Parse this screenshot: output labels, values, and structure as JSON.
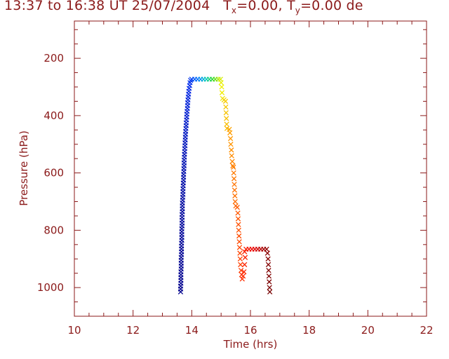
{
  "chart_data": {
    "type": "scatter",
    "title_parts": {
      "time_range": "13:37 to 16:38 UT 25/07/2004",
      "tx_label": "T",
      "tx_sub": "x",
      "tx_value": "=0.00, ",
      "ty_label": "T",
      "ty_sub": "y",
      "ty_value": "=0.00 de"
    },
    "xlabel": "Time  (hrs)",
    "ylabel": "Pressure  (hPa)",
    "xlim": [
      10,
      22
    ],
    "ylim": [
      1100,
      70
    ],
    "y_inverted": true,
    "xticks": [
      "10",
      "12",
      "14",
      "16",
      "18",
      "20",
      "22"
    ],
    "yticks": [
      "200",
      "400",
      "600",
      "800",
      "1000"
    ],
    "marker": "x",
    "color_by": "time",
    "axis_color": "#8b1a1a",
    "series": [
      {
        "points": [
          [
            13.62,
            1015
          ],
          [
            13.62,
            1005
          ],
          [
            13.62,
            995
          ],
          [
            13.63,
            985
          ],
          [
            13.63,
            975
          ],
          [
            13.63,
            965
          ],
          [
            13.63,
            955
          ],
          [
            13.63,
            945
          ],
          [
            13.64,
            935
          ],
          [
            13.64,
            925
          ],
          [
            13.64,
            915
          ],
          [
            13.64,
            905
          ],
          [
            13.64,
            895
          ],
          [
            13.65,
            885
          ],
          [
            13.65,
            875
          ],
          [
            13.65,
            865
          ],
          [
            13.65,
            855
          ],
          [
            13.65,
            845
          ],
          [
            13.66,
            835
          ],
          [
            13.66,
            825
          ],
          [
            13.66,
            815
          ],
          [
            13.66,
            805
          ],
          [
            13.66,
            795
          ],
          [
            13.67,
            785
          ],
          [
            13.67,
            775
          ],
          [
            13.67,
            765
          ],
          [
            13.67,
            755
          ],
          [
            13.67,
            745
          ],
          [
            13.68,
            735
          ],
          [
            13.68,
            725
          ],
          [
            13.68,
            715
          ],
          [
            13.68,
            705
          ],
          [
            13.69,
            695
          ],
          [
            13.69,
            685
          ],
          [
            13.7,
            675
          ],
          [
            13.7,
            665
          ],
          [
            13.7,
            655
          ],
          [
            13.71,
            645
          ],
          [
            13.71,
            635
          ],
          [
            13.72,
            625
          ],
          [
            13.72,
            615
          ],
          [
            13.72,
            605
          ],
          [
            13.73,
            595
          ],
          [
            13.73,
            585
          ],
          [
            13.74,
            575
          ],
          [
            13.74,
            565
          ],
          [
            13.74,
            555
          ],
          [
            13.75,
            545
          ],
          [
            13.75,
            535
          ],
          [
            13.76,
            525
          ],
          [
            13.76,
            515
          ],
          [
            13.77,
            505
          ],
          [
            13.77,
            495
          ],
          [
            13.78,
            485
          ],
          [
            13.78,
            475
          ],
          [
            13.79,
            465
          ],
          [
            13.79,
            455
          ],
          [
            13.8,
            445
          ],
          [
            13.81,
            435
          ],
          [
            13.81,
            425
          ],
          [
            13.82,
            415
          ],
          [
            13.83,
            405
          ],
          [
            13.83,
            395
          ],
          [
            13.84,
            385
          ],
          [
            13.85,
            375
          ],
          [
            13.86,
            365
          ],
          [
            13.86,
            355
          ],
          [
            13.87,
            345
          ],
          [
            13.88,
            335
          ],
          [
            13.89,
            325
          ],
          [
            13.9,
            315
          ],
          [
            13.91,
            305
          ],
          [
            13.93,
            295
          ],
          [
            13.94,
            285
          ],
          [
            13.96,
            277
          ],
          [
            14.0,
            273
          ],
          [
            14.1,
            273
          ],
          [
            14.2,
            273
          ],
          [
            14.3,
            273
          ],
          [
            14.4,
            273
          ],
          [
            14.5,
            273
          ],
          [
            14.6,
            273
          ],
          [
            14.7,
            273
          ],
          [
            14.8,
            273
          ],
          [
            14.9,
            273
          ],
          [
            14.98,
            273
          ],
          [
            15.0,
            285
          ],
          [
            15.02,
            300
          ],
          [
            15.03,
            320
          ],
          [
            15.05,
            340
          ],
          [
            15.1,
            345
          ],
          [
            15.15,
            350
          ],
          [
            15.16,
            370
          ],
          [
            15.17,
            390
          ],
          [
            15.18,
            410
          ],
          [
            15.19,
            430
          ],
          [
            15.2,
            445
          ],
          [
            15.28,
            448
          ],
          [
            15.3,
            460
          ],
          [
            15.32,
            480
          ],
          [
            15.33,
            500
          ],
          [
            15.35,
            520
          ],
          [
            15.36,
            540
          ],
          [
            15.38,
            560
          ],
          [
            15.4,
            575
          ],
          [
            15.42,
            580
          ],
          [
            15.43,
            600
          ],
          [
            15.44,
            620
          ],
          [
            15.45,
            640
          ],
          [
            15.46,
            660
          ],
          [
            15.47,
            680
          ],
          [
            15.48,
            700
          ],
          [
            15.5,
            715
          ],
          [
            15.55,
            720
          ],
          [
            15.57,
            740
          ],
          [
            15.58,
            760
          ],
          [
            15.59,
            780
          ],
          [
            15.6,
            800
          ],
          [
            15.61,
            820
          ],
          [
            15.62,
            840
          ],
          [
            15.63,
            860
          ],
          [
            15.64,
            880
          ],
          [
            15.65,
            900
          ],
          [
            15.66,
            920
          ],
          [
            15.68,
            940
          ],
          [
            15.7,
            955
          ],
          [
            15.72,
            970
          ],
          [
            15.75,
            960
          ],
          [
            15.78,
            945
          ],
          [
            15.8,
            920
          ],
          [
            15.82,
            895
          ],
          [
            15.8,
            875
          ],
          [
            15.85,
            866
          ],
          [
            15.95,
            866
          ],
          [
            16.05,
            866
          ],
          [
            16.15,
            866
          ],
          [
            16.25,
            866
          ],
          [
            16.35,
            866
          ],
          [
            16.45,
            866
          ],
          [
            16.55,
            866
          ],
          [
            16.58,
            880
          ],
          [
            16.6,
            900
          ],
          [
            16.61,
            920
          ],
          [
            16.62,
            940
          ],
          [
            16.63,
            960
          ],
          [
            16.64,
            980
          ],
          [
            16.65,
            1000
          ],
          [
            16.66,
            1015
          ]
        ]
      }
    ]
  }
}
